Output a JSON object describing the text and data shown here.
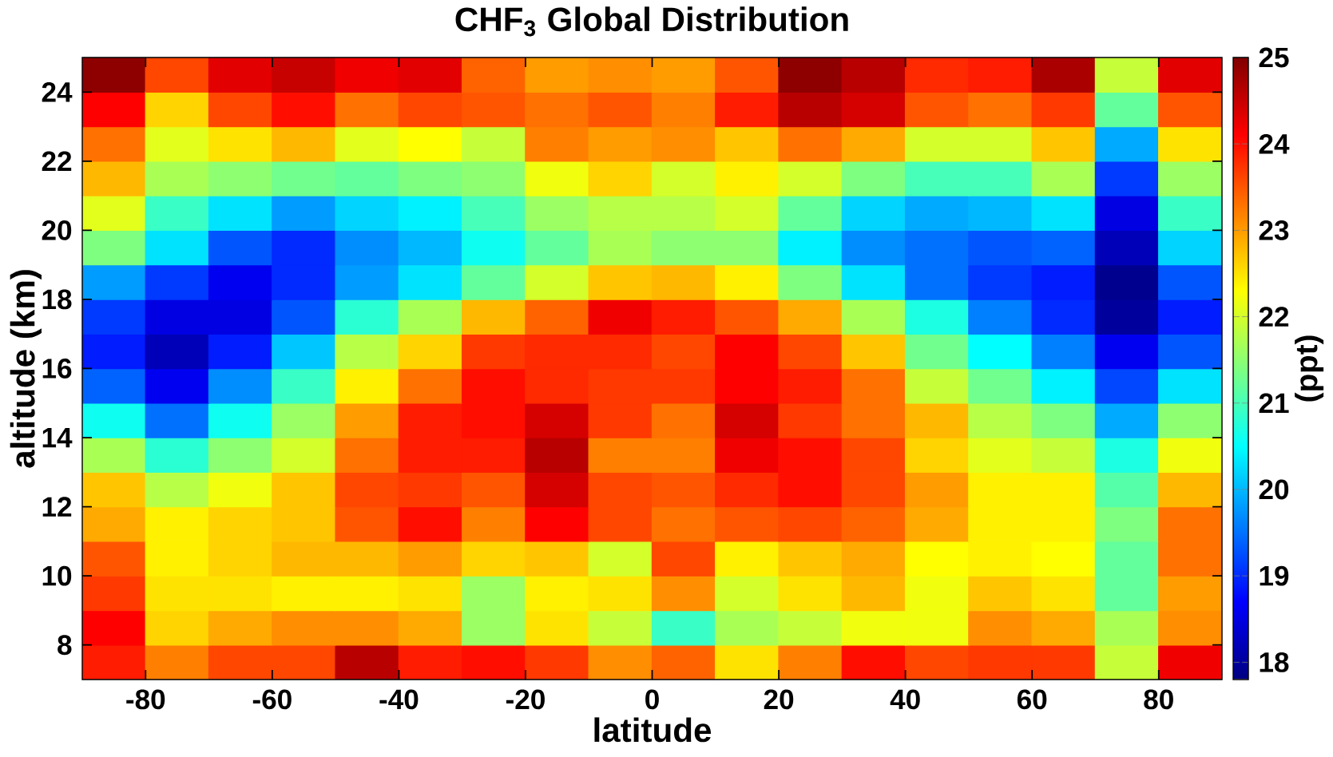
{
  "chart_data": {
    "type": "heatmap",
    "title": "CHF$_{3}$ Global Distribution",
    "xlabel": "latitude",
    "ylabel": "altitude (km)",
    "clabel": "(ppt)",
    "xlim": [
      -90,
      90
    ],
    "xticks": [
      -80,
      -60,
      -40,
      -20,
      0,
      20,
      40,
      60,
      80
    ],
    "ylim": [
      7,
      25
    ],
    "yticks": [
      8,
      10,
      12,
      14,
      16,
      18,
      20,
      22,
      24
    ],
    "clim": [
      17.8,
      25
    ],
    "cticks": [
      18,
      19,
      20,
      21,
      22,
      23,
      24,
      25
    ],
    "cells": [
      [
        24.9,
        23.6,
        24.3,
        24.5,
        24.2,
        24.3,
        23.4,
        23.0,
        23.1,
        23.0,
        23.5,
        24.9,
        24.6,
        23.8,
        23.9,
        24.7,
        21.9,
        24.3
      ],
      [
        24.1,
        22.6,
        23.6,
        24.0,
        23.3,
        23.6,
        23.5,
        23.3,
        23.5,
        23.2,
        23.9,
        24.6,
        24.4,
        23.5,
        23.3,
        23.7,
        21.2,
        23.5
      ],
      [
        23.3,
        22.1,
        22.5,
        22.8,
        22.1,
        22.3,
        21.9,
        23.2,
        23.0,
        23.1,
        22.7,
        23.3,
        22.9,
        22.0,
        22.0,
        22.7,
        19.9,
        22.5
      ],
      [
        22.8,
        21.7,
        21.5,
        21.3,
        21.2,
        21.4,
        21.5,
        22.2,
        22.6,
        22.0,
        22.4,
        22.0,
        21.4,
        21.0,
        21.0,
        21.7,
        19.1,
        21.6
      ],
      [
        22.1,
        20.9,
        20.3,
        19.8,
        20.2,
        20.4,
        21.0,
        21.6,
        21.8,
        21.8,
        22.0,
        21.2,
        20.2,
        19.9,
        20.0,
        20.3,
        18.5,
        20.9
      ],
      [
        21.4,
        20.3,
        19.3,
        19.0,
        19.7,
        20.0,
        20.6,
        21.2,
        21.7,
        21.5,
        21.5,
        20.4,
        19.7,
        19.5,
        19.3,
        19.4,
        18.2,
        20.2
      ],
      [
        19.8,
        19.1,
        18.6,
        19.0,
        19.8,
        20.3,
        21.2,
        22.0,
        22.7,
        22.8,
        22.4,
        21.4,
        20.3,
        19.5,
        19.1,
        18.9,
        17.9,
        19.3
      ],
      [
        19.1,
        18.5,
        18.5,
        19.3,
        20.8,
        21.7,
        22.8,
        23.4,
        24.2,
        23.9,
        23.5,
        22.9,
        21.7,
        20.7,
        19.6,
        19.0,
        18.0,
        18.9
      ],
      [
        18.9,
        18.2,
        18.9,
        20.1,
        21.8,
        22.6,
        23.7,
        23.8,
        23.8,
        23.6,
        24.1,
        23.6,
        22.7,
        21.3,
        20.5,
        19.6,
        18.6,
        19.3
      ],
      [
        19.4,
        18.6,
        19.7,
        20.9,
        22.4,
        23.3,
        24.0,
        23.8,
        23.7,
        23.7,
        24.1,
        23.9,
        23.3,
        21.9,
        21.3,
        20.4,
        19.2,
        20.3
      ],
      [
        20.6,
        19.5,
        20.6,
        21.6,
        23.0,
        23.9,
        24.0,
        24.4,
        23.7,
        23.3,
        24.4,
        23.7,
        23.3,
        22.8,
        21.8,
        21.4,
        19.9,
        21.5
      ],
      [
        21.7,
        20.8,
        21.5,
        22.0,
        23.3,
        23.9,
        23.9,
        24.6,
        23.2,
        23.2,
        24.2,
        24.0,
        23.6,
        22.6,
        22.1,
        21.9,
        20.7,
        22.2
      ],
      [
        22.7,
        21.8,
        22.2,
        22.7,
        23.6,
        23.7,
        23.5,
        24.4,
        23.6,
        23.5,
        23.8,
        24.0,
        23.6,
        23.0,
        22.4,
        22.4,
        21.1,
        22.8
      ],
      [
        22.9,
        22.4,
        22.6,
        22.7,
        23.5,
        24.0,
        23.2,
        24.1,
        23.6,
        23.3,
        23.5,
        23.6,
        23.4,
        22.9,
        22.4,
        22.4,
        21.4,
        23.3
      ],
      [
        23.5,
        22.4,
        22.6,
        22.8,
        22.8,
        23.0,
        22.6,
        22.7,
        22.0,
        23.6,
        22.4,
        22.7,
        22.9,
        22.3,
        22.4,
        22.3,
        21.2,
        23.3
      ],
      [
        23.7,
        22.5,
        22.5,
        22.4,
        22.4,
        22.5,
        21.6,
        22.4,
        22.5,
        23.1,
        22.0,
        22.5,
        22.8,
        22.2,
        22.7,
        22.5,
        21.2,
        23.0
      ],
      [
        24.1,
        22.6,
        22.9,
        23.1,
        23.1,
        22.9,
        21.6,
        22.5,
        21.9,
        20.9,
        21.7,
        21.9,
        22.2,
        22.2,
        23.1,
        22.9,
        21.7,
        23.1
      ],
      [
        23.9,
        23.2,
        23.6,
        23.6,
        24.6,
        23.9,
        24.0,
        23.7,
        23.1,
        23.4,
        22.5,
        23.2,
        24.0,
        23.6,
        23.7,
        23.7,
        21.9,
        24.2
      ]
    ]
  }
}
